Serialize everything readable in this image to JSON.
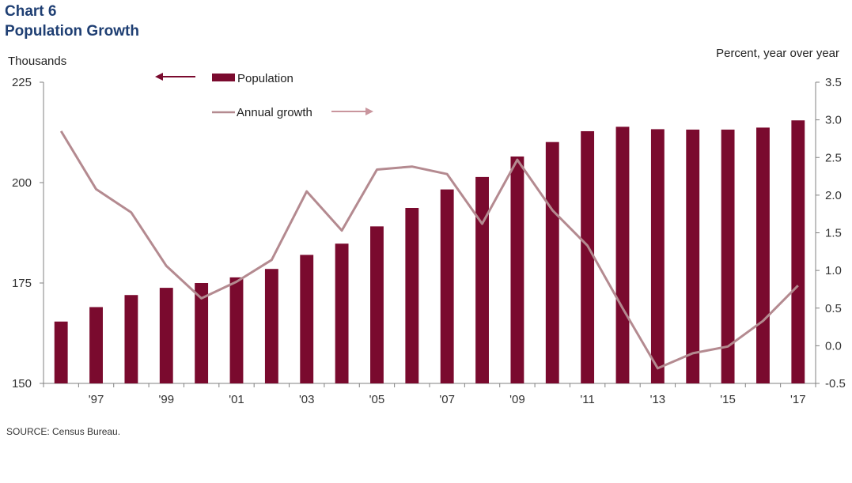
{
  "title_line1": "Chart 6",
  "title_line2": "Population Growth",
  "source": "SOURCE:  Census Bureau.",
  "colors": {
    "bar": "#7a0a2e",
    "line": "#b48a90",
    "title": "#1f3f73"
  },
  "chart_data": {
    "type": "bar",
    "left_axis_label": "Thousands",
    "right_axis_label": "Percent, year over year",
    "left_ticks": [
      "150",
      "175",
      "200",
      "225"
    ],
    "right_ticks": [
      "-0.5",
      "0.0",
      "0.5",
      "1.0",
      "1.5",
      "2.0",
      "2.5",
      "3.0",
      "3.5"
    ],
    "x_tick_labels": [
      "'97",
      "'99",
      "'01",
      "'03",
      "'05",
      "'07",
      "'09",
      "'11",
      "'13",
      "'15",
      "'17"
    ],
    "ylim_left": [
      150,
      225
    ],
    "ylim_right": [
      -0.5,
      3.5
    ],
    "grid": false,
    "legend_position": "top-center",
    "years": [
      1996,
      1997,
      1998,
      1999,
      2000,
      2001,
      2002,
      2003,
      2004,
      2005,
      2006,
      2007,
      2008,
      2009,
      2010,
      2011,
      2012,
      2013,
      2014,
      2015,
      2016,
      2017
    ],
    "series": [
      {
        "name": "Population",
        "kind": "bar",
        "axis": "left",
        "values": [
          165.4,
          169.0,
          172.0,
          173.8,
          175.0,
          176.4,
          178.5,
          182.0,
          184.8,
          189.1,
          193.7,
          198.3,
          201.4,
          206.5,
          210.1,
          212.8,
          213.9,
          213.3,
          213.2,
          213.2,
          213.7,
          215.5
        ]
      },
      {
        "name": "Annual growth",
        "kind": "line",
        "axis": "right",
        "values": [
          2.85,
          2.08,
          1.77,
          1.06,
          0.63,
          0.85,
          1.14,
          2.05,
          1.53,
          2.34,
          2.38,
          2.28,
          1.62,
          2.47,
          1.8,
          1.33,
          0.5,
          -0.3,
          -0.1,
          -0.01,
          0.33,
          0.8
        ]
      }
    ]
  }
}
